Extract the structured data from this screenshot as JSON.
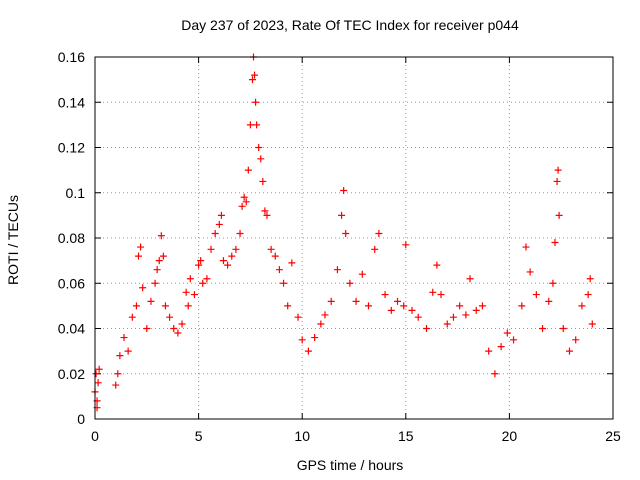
{
  "chart_data": {
    "type": "scatter",
    "title": "Day 237 of 2023, Rate Of TEC Index for receiver p044",
    "xlabel": "GPS time / hours",
    "ylabel": "ROTI / TECUs",
    "xlim": [
      0,
      25
    ],
    "ylim": [
      0,
      0.16
    ],
    "xticks": [
      0,
      5,
      10,
      15,
      20,
      25
    ],
    "yticks": [
      0,
      0.02,
      0.04,
      0.06,
      0.08,
      0.1,
      0.12,
      0.14,
      0.16
    ],
    "xtick_labels": [
      "0",
      "5",
      "10",
      "15",
      "20",
      "25"
    ],
    "ytick_labels": [
      "0",
      "0.02",
      "0.04",
      "0.06",
      "0.08",
      "0.1",
      "0.12",
      "0.14",
      "0.16"
    ],
    "grid": true,
    "marker": "+",
    "marker_color": "#ff0000",
    "series": [
      {
        "points": [
          [
            0.0,
            0.012
          ],
          [
            0.05,
            0.02
          ],
          [
            0.1,
            0.008
          ],
          [
            0.15,
            0.016
          ],
          [
            0.2,
            0.022
          ],
          [
            0.1,
            0.005
          ],
          [
            1.0,
            0.015
          ],
          [
            1.1,
            0.02
          ],
          [
            1.2,
            0.028
          ],
          [
            1.4,
            0.036
          ],
          [
            1.6,
            0.03
          ],
          [
            1.8,
            0.045
          ],
          [
            2.0,
            0.05
          ],
          [
            2.1,
            0.072
          ],
          [
            2.2,
            0.076
          ],
          [
            2.3,
            0.058
          ],
          [
            2.5,
            0.04
          ],
          [
            2.7,
            0.052
          ],
          [
            2.9,
            0.06
          ],
          [
            3.0,
            0.066
          ],
          [
            3.1,
            0.07
          ],
          [
            3.2,
            0.081
          ],
          [
            3.3,
            0.072
          ],
          [
            3.4,
            0.05
          ],
          [
            3.6,
            0.045
          ],
          [
            3.8,
            0.04
          ],
          [
            4.0,
            0.038
          ],
          [
            4.2,
            0.042
          ],
          [
            4.4,
            0.056
          ],
          [
            4.5,
            0.05
          ],
          [
            4.6,
            0.062
          ],
          [
            4.8,
            0.055
          ],
          [
            5.0,
            0.068
          ],
          [
            5.1,
            0.07
          ],
          [
            5.2,
            0.06
          ],
          [
            5.4,
            0.062
          ],
          [
            5.6,
            0.075
          ],
          [
            5.8,
            0.082
          ],
          [
            6.0,
            0.086
          ],
          [
            6.1,
            0.09
          ],
          [
            6.2,
            0.07
          ],
          [
            6.4,
            0.068
          ],
          [
            6.6,
            0.072
          ],
          [
            6.8,
            0.075
          ],
          [
            7.0,
            0.082
          ],
          [
            7.1,
            0.094
          ],
          [
            7.2,
            0.098
          ],
          [
            7.3,
            0.096
          ],
          [
            7.4,
            0.11
          ],
          [
            7.5,
            0.13
          ],
          [
            7.6,
            0.15
          ],
          [
            7.65,
            0.16
          ],
          [
            7.7,
            0.152
          ],
          [
            7.75,
            0.14
          ],
          [
            7.8,
            0.13
          ],
          [
            7.9,
            0.12
          ],
          [
            8.0,
            0.115
          ],
          [
            8.1,
            0.105
          ],
          [
            8.2,
            0.092
          ],
          [
            8.3,
            0.09
          ],
          [
            8.5,
            0.075
          ],
          [
            8.7,
            0.072
          ],
          [
            8.9,
            0.066
          ],
          [
            9.1,
            0.06
          ],
          [
            9.3,
            0.05
          ],
          [
            9.5,
            0.069
          ],
          [
            9.8,
            0.045
          ],
          [
            10.0,
            0.035
          ],
          [
            10.3,
            0.03
          ],
          [
            10.6,
            0.036
          ],
          [
            10.9,
            0.042
          ],
          [
            11.1,
            0.046
          ],
          [
            11.4,
            0.052
          ],
          [
            11.7,
            0.066
          ],
          [
            11.9,
            0.09
          ],
          [
            12.0,
            0.101
          ],
          [
            12.1,
            0.082
          ],
          [
            12.3,
            0.06
          ],
          [
            12.6,
            0.052
          ],
          [
            12.9,
            0.064
          ],
          [
            13.2,
            0.05
          ],
          [
            13.5,
            0.075
          ],
          [
            13.7,
            0.082
          ],
          [
            14.0,
            0.055
          ],
          [
            14.3,
            0.048
          ],
          [
            14.6,
            0.052
          ],
          [
            14.9,
            0.05
          ],
          [
            15.0,
            0.077
          ],
          [
            15.3,
            0.048
          ],
          [
            15.6,
            0.045
          ],
          [
            16.0,
            0.04
          ],
          [
            16.3,
            0.056
          ],
          [
            16.5,
            0.068
          ],
          [
            16.7,
            0.055
          ],
          [
            17.0,
            0.042
          ],
          [
            17.3,
            0.045
          ],
          [
            17.6,
            0.05
          ],
          [
            17.9,
            0.046
          ],
          [
            18.1,
            0.062
          ],
          [
            18.4,
            0.048
          ],
          [
            18.7,
            0.05
          ],
          [
            19.0,
            0.03
          ],
          [
            19.3,
            0.02
          ],
          [
            19.6,
            0.032
          ],
          [
            19.9,
            0.038
          ],
          [
            20.2,
            0.035
          ],
          [
            20.6,
            0.05
          ],
          [
            20.8,
            0.076
          ],
          [
            21.0,
            0.065
          ],
          [
            21.3,
            0.055
          ],
          [
            21.6,
            0.04
          ],
          [
            21.9,
            0.052
          ],
          [
            22.1,
            0.06
          ],
          [
            22.2,
            0.078
          ],
          [
            22.3,
            0.105
          ],
          [
            22.35,
            0.11
          ],
          [
            22.4,
            0.09
          ],
          [
            22.6,
            0.04
          ],
          [
            22.9,
            0.03
          ],
          [
            23.2,
            0.035
          ],
          [
            23.5,
            0.05
          ],
          [
            23.8,
            0.055
          ],
          [
            23.9,
            0.062
          ],
          [
            24.0,
            0.042
          ]
        ]
      }
    ]
  }
}
